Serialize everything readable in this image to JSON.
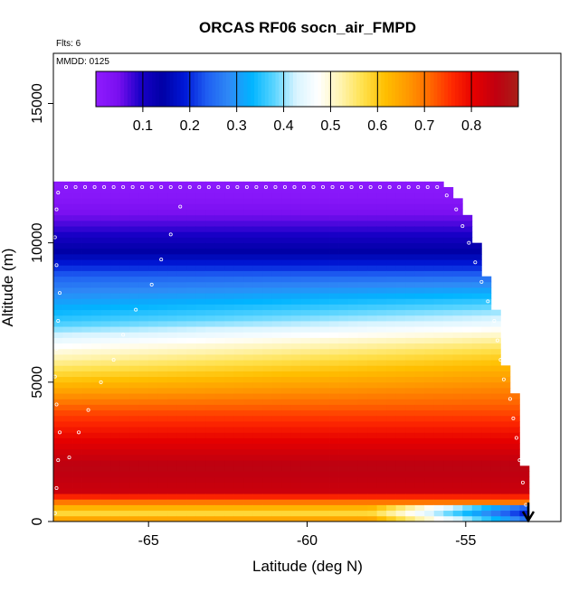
{
  "chart_data": {
    "type": "heatmap",
    "title": "ORCAS RF06 socn_air_FMPD",
    "subtitle_flights": "Flts: 6",
    "subtitle_date": "MMDD: 0125",
    "xlabel": "Latitude (deg N)",
    "ylabel": "Altitude (m)",
    "xlim": [
      -68.0,
      -52.0
    ],
    "ylim": [
      0,
      16800
    ],
    "x_ticks": [
      -65,
      -60,
      -55
    ],
    "x_tick_labels": [
      "-65",
      "-60",
      "-55"
    ],
    "y_ticks": [
      0,
      5000,
      10000,
      15000
    ],
    "y_tick_labels": [
      "0",
      "5000",
      "10000",
      "15000"
    ],
    "colorbar": {
      "range": [
        0.0,
        0.9
      ],
      "ticks": [
        0.1,
        0.2,
        0.3,
        0.4,
        0.5,
        0.6,
        0.7,
        0.8
      ],
      "tick_labels": [
        "0.1",
        "0.2",
        "0.3",
        "0.4",
        "0.5",
        "0.6",
        "0.7",
        "0.8"
      ],
      "colors": [
        "#8f1cff",
        "#7a0ff0",
        "#1a00c8",
        "#0000a6",
        "#0018d8",
        "#1f5ff2",
        "#2f8af6",
        "#00b4ff",
        "#58d4ff",
        "#d8f4ff",
        "#ffffff",
        "#fff4b0",
        "#ffe14d",
        "#ffbf00",
        "#ff9a00",
        "#ff6a00",
        "#ff2a00",
        "#e60000",
        "#c00010",
        "#a82018"
      ]
    },
    "grid_x_range": [
      -68.0,
      -53.0
    ],
    "alt_profile": [
      {
        "alt": 0,
        "value": 0.7
      },
      {
        "alt": 250,
        "value": 0.57
      },
      {
        "alt": 500,
        "value": 0.63
      },
      {
        "alt": 800,
        "value": 0.73
      },
      {
        "alt": 1100,
        "value": 0.84
      },
      {
        "alt": 2000,
        "value": 0.86
      },
      {
        "alt": 3000,
        "value": 0.8
      },
      {
        "alt": 4000,
        "value": 0.73
      },
      {
        "alt": 4800,
        "value": 0.64
      },
      {
        "alt": 5600,
        "value": 0.55
      },
      {
        "alt": 6400,
        "value": 0.46
      },
      {
        "alt": 7200,
        "value": 0.36
      },
      {
        "alt": 8000,
        "value": 0.3
      },
      {
        "alt": 8800,
        "value": 0.24
      },
      {
        "alt": 9600,
        "value": 0.15
      },
      {
        "alt": 10400,
        "value": 0.09
      },
      {
        "alt": 11000,
        "value": 0.05
      },
      {
        "alt": 11600,
        "value": 0.02
      },
      {
        "alt": 12200,
        "value": 0.01
      }
    ],
    "top_edge": [
      {
        "lat": -68.0,
        "alt": 12200
      },
      {
        "lat": -55.8,
        "alt": 12200
      },
      {
        "lat": -55.4,
        "alt": 11600
      },
      {
        "lat": -55.0,
        "alt": 11100
      },
      {
        "lat": -54.8,
        "alt": 10300
      },
      {
        "lat": -54.6,
        "alt": 9700
      },
      {
        "lat": -54.4,
        "alt": 8800
      },
      {
        "lat": -54.2,
        "alt": 8000
      },
      {
        "lat": -54.0,
        "alt": 7400
      },
      {
        "lat": -53.9,
        "alt": 6500
      },
      {
        "lat": -53.8,
        "alt": 5600
      },
      {
        "lat": -53.6,
        "alt": 5000
      },
      {
        "lat": -53.4,
        "alt": 4300
      },
      {
        "lat": -53.3,
        "alt": 3200
      },
      {
        "lat": -53.2,
        "alt": 2300
      },
      {
        "lat": -53.0,
        "alt": 400
      }
    ],
    "flight_track": [
      {
        "lat": -67.95,
        "alt": 300
      },
      {
        "lat": -67.9,
        "alt": 1200
      },
      {
        "lat": -67.85,
        "alt": 2200
      },
      {
        "lat": -67.8,
        "alt": 3200
      },
      {
        "lat": -67.9,
        "alt": 4200
      },
      {
        "lat": -67.95,
        "alt": 5200
      },
      {
        "lat": -67.9,
        "alt": 6200
      },
      {
        "lat": -67.85,
        "alt": 7200
      },
      {
        "lat": -67.8,
        "alt": 8200
      },
      {
        "lat": -67.9,
        "alt": 9200
      },
      {
        "lat": -67.95,
        "alt": 10200
      },
      {
        "lat": -67.9,
        "alt": 11200
      },
      {
        "lat": -67.85,
        "alt": 11800
      },
      {
        "lat": -67.5,
        "alt": 2300
      },
      {
        "lat": -67.2,
        "alt": 3200
      },
      {
        "lat": -66.9,
        "alt": 4000
      },
      {
        "lat": -66.5,
        "alt": 5000
      },
      {
        "lat": -66.1,
        "alt": 5800
      },
      {
        "lat": -65.8,
        "alt": 6700
      },
      {
        "lat": -65.4,
        "alt": 7600
      },
      {
        "lat": -64.9,
        "alt": 8500
      },
      {
        "lat": -64.6,
        "alt": 9400
      },
      {
        "lat": -64.3,
        "alt": 10300
      },
      {
        "lat": -64.0,
        "alt": 11300
      },
      {
        "lat": -67.6,
        "alt": 12000
      },
      {
        "lat": -67.3,
        "alt": 12000
      },
      {
        "lat": -67.0,
        "alt": 12000
      },
      {
        "lat": -66.7,
        "alt": 12000
      },
      {
        "lat": -66.4,
        "alt": 12000
      },
      {
        "lat": -66.1,
        "alt": 12000
      },
      {
        "lat": -65.8,
        "alt": 12000
      },
      {
        "lat": -65.5,
        "alt": 12000
      },
      {
        "lat": -65.2,
        "alt": 12000
      },
      {
        "lat": -64.9,
        "alt": 12000
      },
      {
        "lat": -64.6,
        "alt": 12000
      },
      {
        "lat": -64.3,
        "alt": 12000
      },
      {
        "lat": -64.0,
        "alt": 12000
      },
      {
        "lat": -63.7,
        "alt": 12000
      },
      {
        "lat": -63.4,
        "alt": 12000
      },
      {
        "lat": -63.1,
        "alt": 12000
      },
      {
        "lat": -62.8,
        "alt": 12000
      },
      {
        "lat": -62.5,
        "alt": 12000
      },
      {
        "lat": -62.2,
        "alt": 12000
      },
      {
        "lat": -61.9,
        "alt": 12000
      },
      {
        "lat": -61.6,
        "alt": 12000
      },
      {
        "lat": -61.3,
        "alt": 12000
      },
      {
        "lat": -61.0,
        "alt": 12000
      },
      {
        "lat": -60.7,
        "alt": 12000
      },
      {
        "lat": -60.4,
        "alt": 12000
      },
      {
        "lat": -60.1,
        "alt": 12000
      },
      {
        "lat": -59.8,
        "alt": 12000
      },
      {
        "lat": -59.5,
        "alt": 12000
      },
      {
        "lat": -59.2,
        "alt": 12000
      },
      {
        "lat": -58.9,
        "alt": 12000
      },
      {
        "lat": -58.6,
        "alt": 12000
      },
      {
        "lat": -58.3,
        "alt": 12000
      },
      {
        "lat": -58.0,
        "alt": 12000
      },
      {
        "lat": -57.7,
        "alt": 12000
      },
      {
        "lat": -57.4,
        "alt": 12000
      },
      {
        "lat": -57.1,
        "alt": 12000
      },
      {
        "lat": -56.8,
        "alt": 12000
      },
      {
        "lat": -56.5,
        "alt": 12000
      },
      {
        "lat": -56.2,
        "alt": 12000
      },
      {
        "lat": -55.9,
        "alt": 12000
      },
      {
        "lat": -55.6,
        "alt": 11700
      },
      {
        "lat": -55.3,
        "alt": 11200
      },
      {
        "lat": -55.1,
        "alt": 10600
      },
      {
        "lat": -54.9,
        "alt": 10000
      },
      {
        "lat": -54.7,
        "alt": 9300
      },
      {
        "lat": -54.5,
        "alt": 8600
      },
      {
        "lat": -54.3,
        "alt": 7900
      },
      {
        "lat": -54.1,
        "alt": 7200
      },
      {
        "lat": -54.0,
        "alt": 6500
      },
      {
        "lat": -53.9,
        "alt": 5800
      },
      {
        "lat": -53.8,
        "alt": 5100
      },
      {
        "lat": -53.6,
        "alt": 4400
      },
      {
        "lat": -53.5,
        "alt": 3700
      },
      {
        "lat": -53.4,
        "alt": 3000
      },
      {
        "lat": -53.3,
        "alt": 2200
      },
      {
        "lat": -53.2,
        "alt": 1400
      },
      {
        "lat": -53.1,
        "alt": 600
      }
    ]
  }
}
